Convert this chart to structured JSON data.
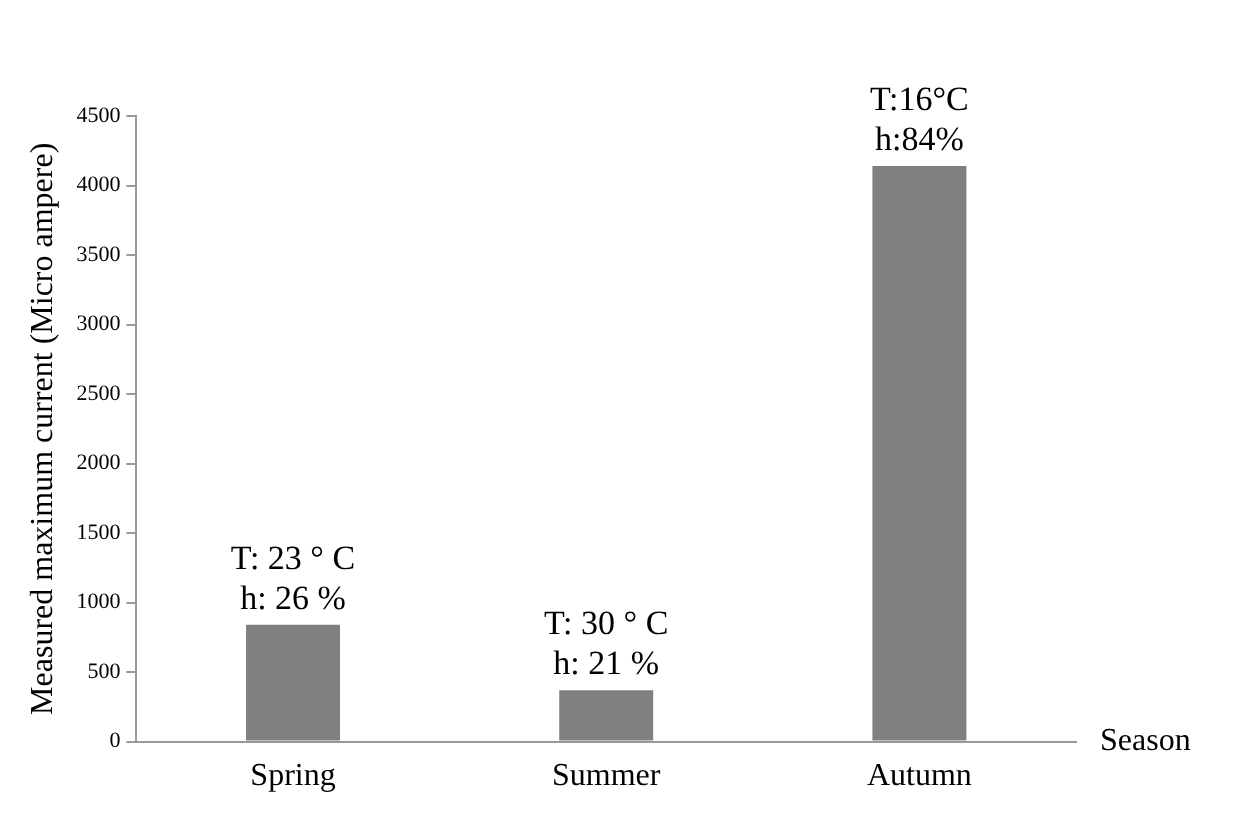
{
  "chart_data": {
    "type": "bar",
    "categories": [
      "Spring",
      "Summer",
      "Autumn"
    ],
    "values": [
      840,
      370,
      4140
    ],
    "color": "#808080",
    "ylim": [
      0,
      4500
    ],
    "yticks": [
      0,
      500,
      1000,
      1500,
      2000,
      2500,
      3000,
      3500,
      4000,
      4500
    ],
    "grid": false,
    "xlabel": "Season",
    "ylabel": "Measured maximum current (Micro ampere)",
    "annotations": [
      {
        "text": "T: 23 ° C\nh: 26 %",
        "x": "Spring",
        "y": 840
      },
      {
        "text": "T: 30 ° C\nh: 21 %",
        "x": "Summer",
        "y": 370
      },
      {
        "text": "T:16°C\nh:84%",
        "x": "Autumn",
        "y": 4140
      }
    ]
  }
}
